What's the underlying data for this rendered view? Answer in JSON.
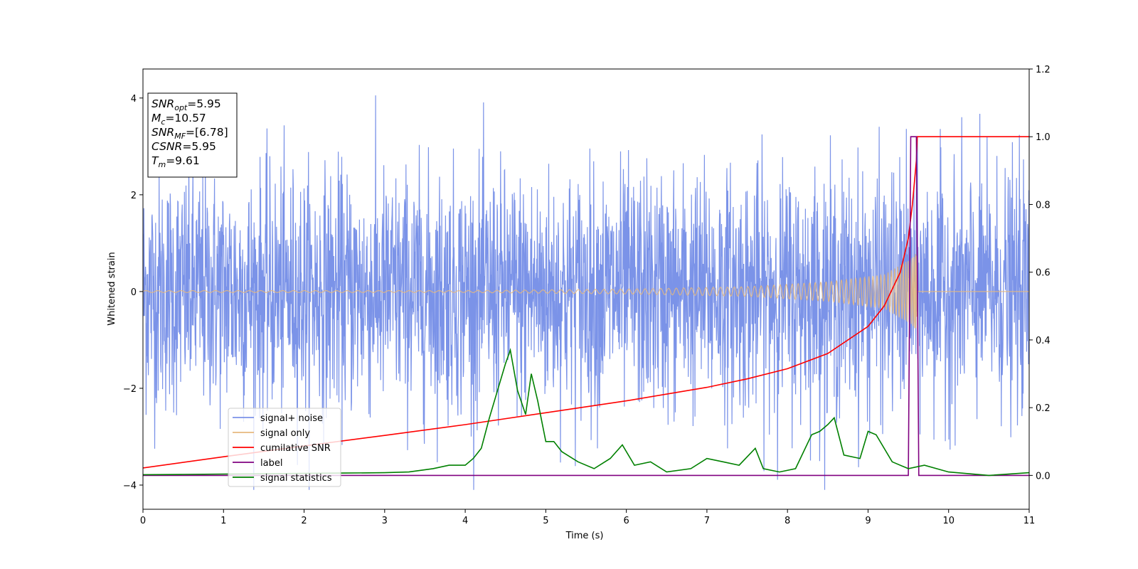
{
  "chart_data": {
    "type": "line",
    "xlabel": "Time (s)",
    "ylabel": "Whitened strain",
    "xlim": [
      0,
      11
    ],
    "ylim": [
      -4.5,
      4.6
    ],
    "y2lim": [
      -0.1,
      1.2
    ],
    "x_ticks": [
      "0",
      "1",
      "2",
      "3",
      "4",
      "5",
      "6",
      "7",
      "8",
      "9",
      "10",
      "11"
    ],
    "y_ticks": [
      "4",
      "2",
      "0",
      "−2",
      "−4"
    ],
    "y2_ticks": [
      "1.2",
      "1.0",
      "0.8",
      "0.6",
      "0.4",
      "0.2",
      "0.0"
    ],
    "legend_position": "lower-left",
    "info_box": [
      {
        "var": "SNR",
        "sub": "opt",
        "value": "=5.95"
      },
      {
        "var": "M",
        "sub": "c",
        "value": "=10.57"
      },
      {
        "var": "SNR",
        "sub": "MF",
        "value": "=[6.78]"
      },
      {
        "var": "CSNR",
        "sub": "",
        "value": "=5.95"
      },
      {
        "var": "T",
        "sub": "m",
        "value": "=9.61"
      }
    ],
    "series": [
      {
        "name": "signal+ noise",
        "axis": "left",
        "color": "#7b93e8",
        "description_type": "noise",
        "envelope": {
          "typical_range": [
            -2.6,
            2.6
          ],
          "max": 4.2,
          "min": -4.1,
          "x_end": 11
        }
      },
      {
        "name": "signal only",
        "axis": "left",
        "color": "#e6b87e",
        "description_type": "chirp",
        "amplitude": [
          [
            0,
            0.02
          ],
          [
            4,
            0.02
          ],
          [
            6,
            0.05
          ],
          [
            7.5,
            0.1
          ],
          [
            8.5,
            0.2
          ],
          [
            9.2,
            0.35
          ],
          [
            9.55,
            0.7
          ],
          [
            9.61,
            0.9
          ]
        ],
        "merge_time": 9.61
      },
      {
        "name": "cumilative SNR",
        "axis": "right",
        "color": "#ff0000",
        "x": [
          0,
          1,
          2,
          3,
          4,
          5,
          6,
          7,
          7.5,
          8,
          8.5,
          9,
          9.2,
          9.4,
          9.5,
          9.55,
          9.6,
          9.61,
          9.62,
          10,
          11
        ],
        "y": [
          0.022,
          0.055,
          0.087,
          0.118,
          0.15,
          0.185,
          0.22,
          0.26,
          0.285,
          0.315,
          0.36,
          0.44,
          0.5,
          0.6,
          0.7,
          0.8,
          0.93,
          1.0,
          1.0,
          1.0,
          1.0
        ]
      },
      {
        "name": "label",
        "axis": "right",
        "color": "#800080",
        "x": [
          0,
          9.5,
          9.53,
          9.6,
          9.63,
          11
        ],
        "y": [
          0,
          0,
          1.0,
          1.0,
          0,
          0
        ]
      },
      {
        "name": "signal statistics",
        "axis": "right",
        "color": "#008000",
        "x": [
          0,
          0.5,
          1,
          1.5,
          2,
          2.5,
          3,
          3.3,
          3.6,
          3.8,
          4,
          4.1,
          4.2,
          4.3,
          4.4,
          4.5,
          4.56,
          4.65,
          4.75,
          4.82,
          4.9,
          5,
          5.1,
          5.2,
          5.4,
          5.6,
          5.8,
          5.95,
          6.1,
          6.3,
          6.5,
          6.8,
          7,
          7.2,
          7.4,
          7.6,
          7.7,
          7.9,
          8.1,
          8.3,
          8.4,
          8.5,
          8.58,
          8.7,
          8.9,
          9,
          9.1,
          9.3,
          9.5,
          9.7,
          10,
          10.5,
          11
        ],
        "y": [
          0.002,
          0.003,
          0.004,
          0.005,
          0.006,
          0.007,
          0.008,
          0.01,
          0.02,
          0.03,
          0.03,
          0.05,
          0.08,
          0.17,
          0.25,
          0.33,
          0.37,
          0.25,
          0.18,
          0.3,
          0.22,
          0.1,
          0.1,
          0.07,
          0.04,
          0.02,
          0.05,
          0.09,
          0.03,
          0.04,
          0.01,
          0.02,
          0.05,
          0.04,
          0.03,
          0.08,
          0.02,
          0.01,
          0.02,
          0.12,
          0.13,
          0.15,
          0.17,
          0.06,
          0.05,
          0.13,
          0.12,
          0.04,
          0.02,
          0.03,
          0.01,
          0.0,
          0.008
        ]
      }
    ]
  }
}
